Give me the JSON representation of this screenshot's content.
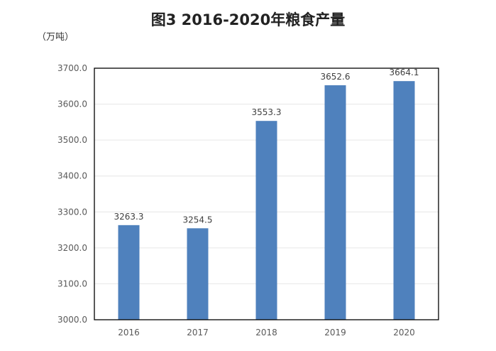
{
  "chart_data": {
    "type": "bar",
    "title": "图3 2016-2020年粮食产量",
    "ylabel": "（万吨）",
    "xlabel": "",
    "categories": [
      "2016",
      "2017",
      "2018",
      "2019",
      "2020"
    ],
    "values": [
      3263.3,
      3254.5,
      3553.3,
      3652.6,
      3664.1
    ],
    "data_labels": [
      "3263.3",
      "3254.5",
      "3553.3",
      "3652.6",
      "3664.1"
    ],
    "ylim": [
      3000,
      3700
    ],
    "yticks": [
      "3000.0",
      "3100.0",
      "3200.0",
      "3300.0",
      "3400.0",
      "3500.0",
      "3600.0",
      "3700.0"
    ],
    "grid": true,
    "legend": "none",
    "bar_color": "#4f81bd"
  }
}
